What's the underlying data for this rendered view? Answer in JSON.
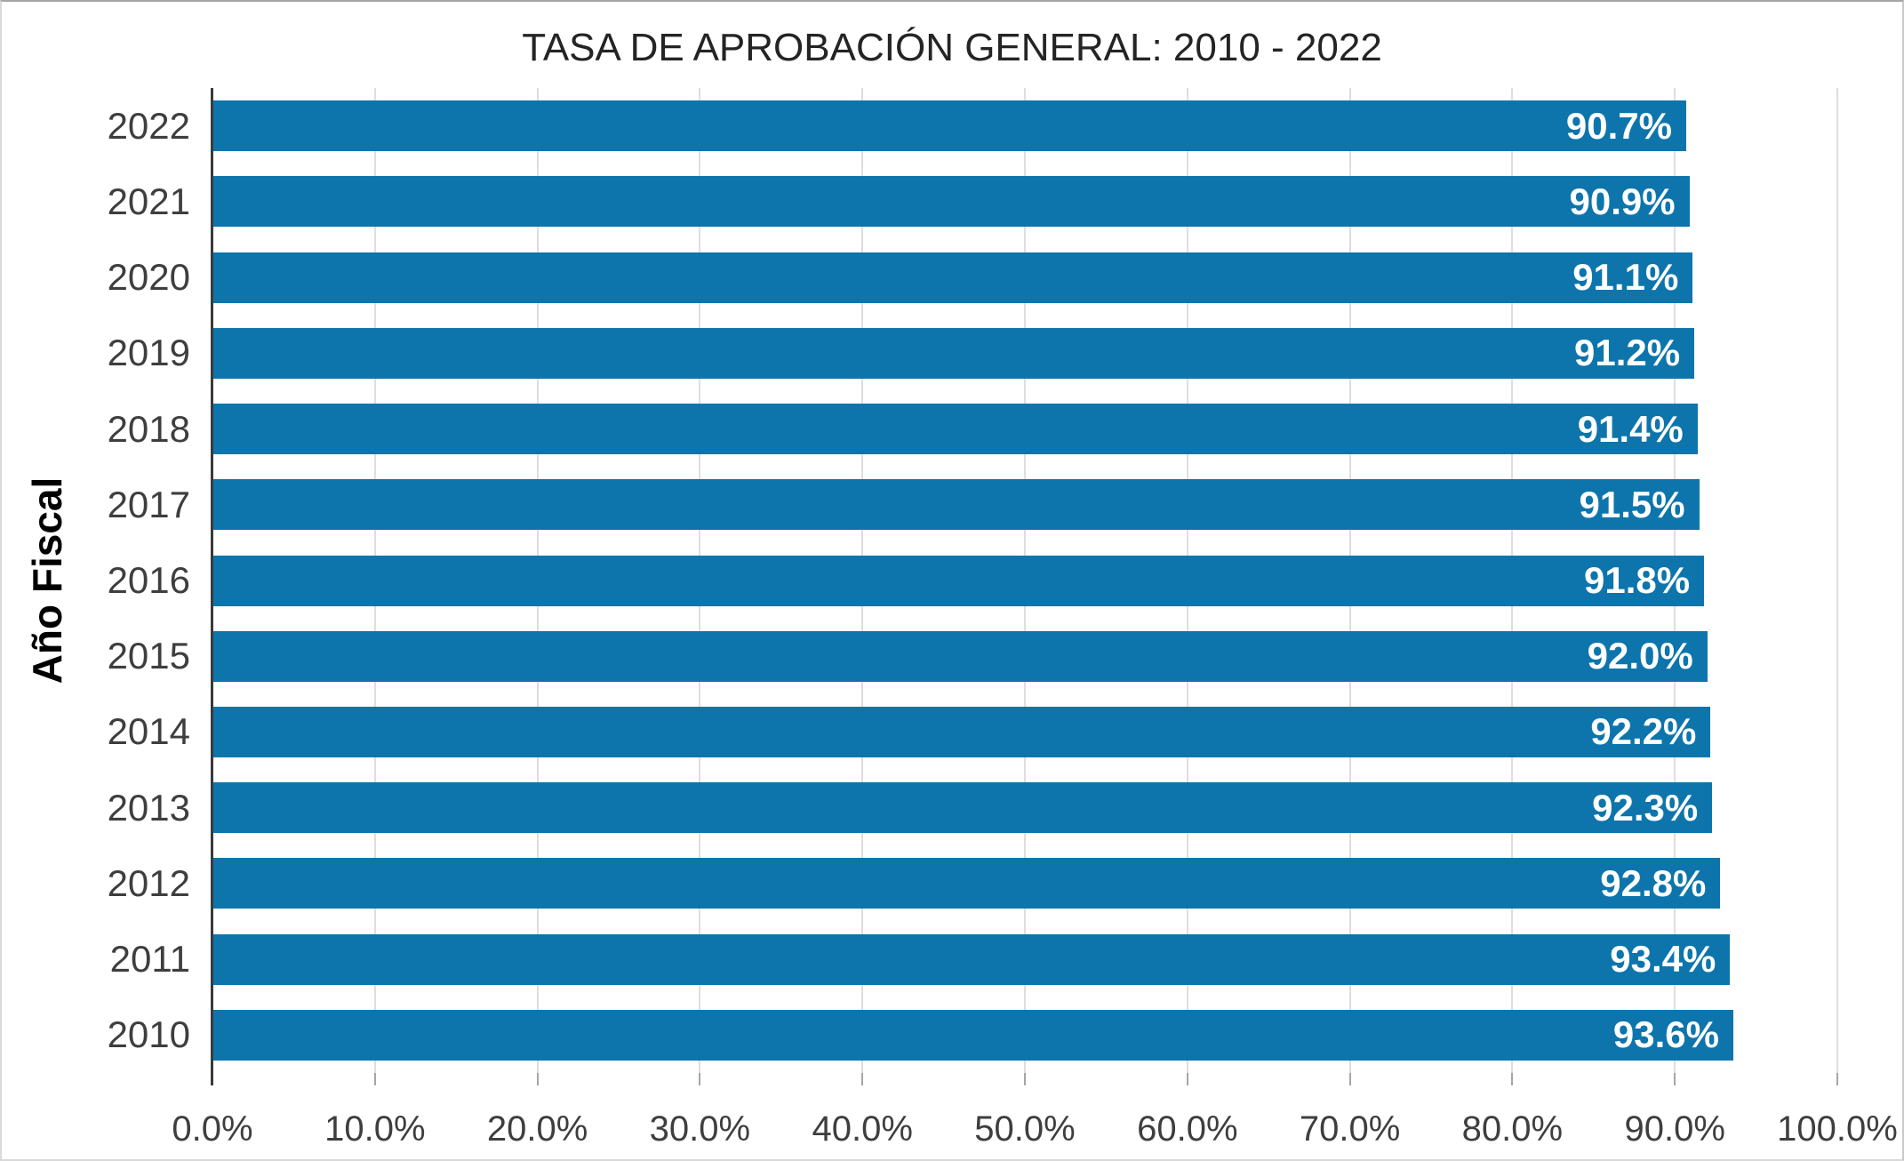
{
  "title": "TASA DE APROBACIÓN GENERAL: 2010 - 2022",
  "colors": {
    "bar": "#0d75ac",
    "bar_value_text": "#ffffff",
    "gridline": "#dedede",
    "axis_line": "#3a3a3a",
    "tick": "#a6a6a6",
    "axis_label_text": "#3e3e3e",
    "title_text": "#242424"
  },
  "chart_data": {
    "type": "bar",
    "orientation": "horizontal",
    "title": "TASA DE APROBACIÓN GENERAL: 2010 - 2022",
    "ylabel": "Año Fiscal",
    "xlabel": "",
    "categories": [
      "2022",
      "2021",
      "2020",
      "2019",
      "2018",
      "2017",
      "2016",
      "2015",
      "2014",
      "2013",
      "2012",
      "2011",
      "2010"
    ],
    "values": [
      90.7,
      90.9,
      91.1,
      91.2,
      91.4,
      91.5,
      91.8,
      92.0,
      92.2,
      92.3,
      92.8,
      93.4,
      93.6
    ],
    "value_labels": [
      "90.7%",
      "90.9%",
      "91.1%",
      "91.2%",
      "91.4%",
      "91.5%",
      "91.8%",
      "92.0%",
      "92.2%",
      "92.3%",
      "92.8%",
      "93.4%",
      "93.6%"
    ],
    "xlim": [
      0,
      100
    ],
    "x_ticks": [
      "0.0%",
      "10.0%",
      "20.0%",
      "30.0%",
      "40.0%",
      "50.0%",
      "60.0%",
      "70.0%",
      "80.0%",
      "90.0%",
      "100.0%"
    ],
    "grid": true,
    "legend": false
  }
}
